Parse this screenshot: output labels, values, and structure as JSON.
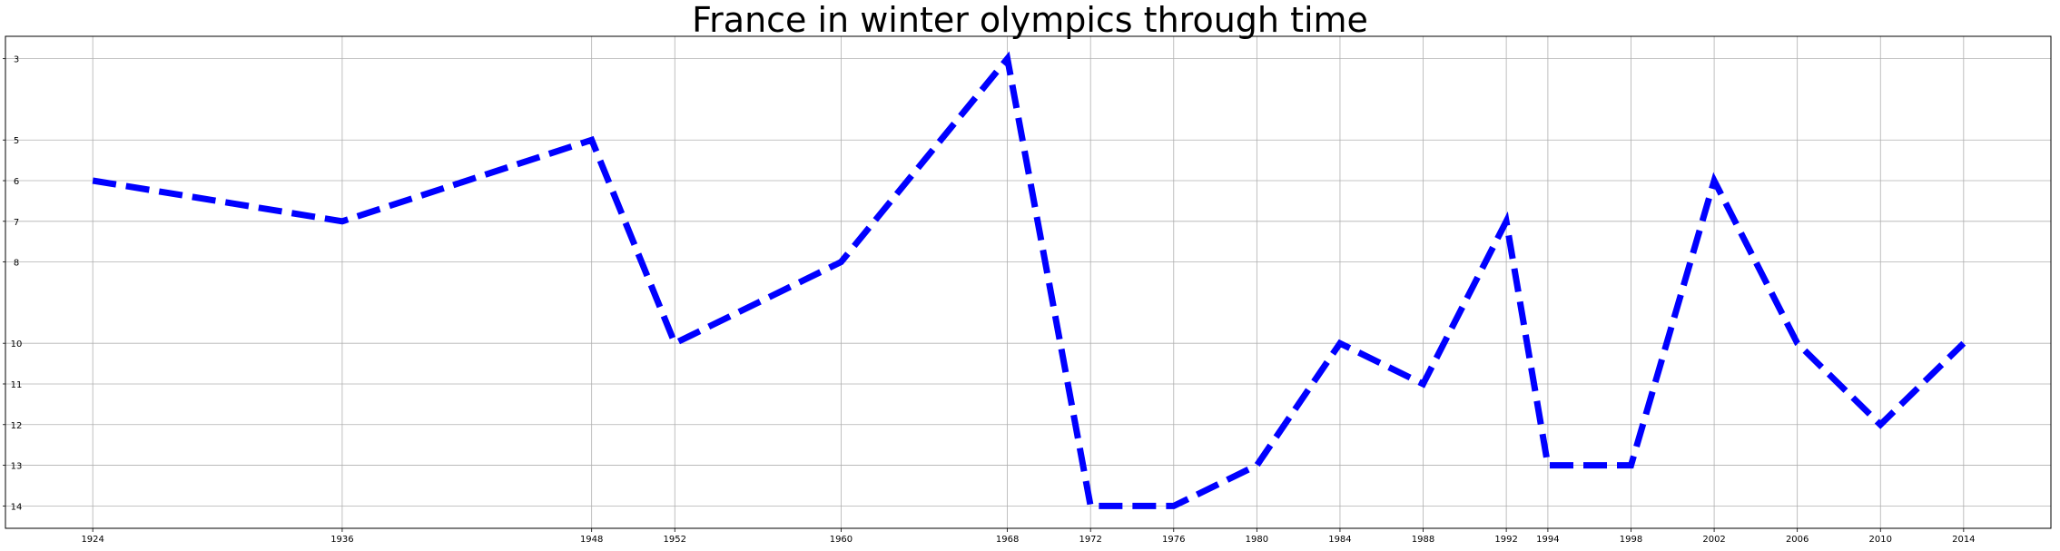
{
  "chart_data": {
    "type": "line",
    "title": "France in winter olympics through time",
    "xlabel": "",
    "ylabel": "",
    "x": [
      1924,
      1936,
      1948,
      1952,
      1960,
      1968,
      1972,
      1976,
      1980,
      1984,
      1988,
      1992,
      1994,
      1998,
      2002,
      2006,
      2010,
      2014
    ],
    "x_ticks": [
      1924,
      1936,
      1948,
      1952,
      1960,
      1968,
      1972,
      1976,
      1980,
      1984,
      1988,
      1992,
      1994,
      1998,
      2002,
      2006,
      2010,
      2014
    ],
    "y_ticks": [
      3,
      5,
      6,
      7,
      8,
      10,
      11,
      12,
      13,
      14
    ],
    "y_inverted": true,
    "xlim": [
      1919.8,
      2018.2
    ],
    "ylim": [
      2.45,
      14.55
    ],
    "grid": true,
    "legend": "none",
    "series": [
      {
        "values": [
          6,
          7,
          5,
          10,
          8,
          3,
          14,
          14,
          13,
          10,
          11,
          7,
          13,
          13,
          6,
          10,
          12,
          10
        ],
        "color": "#0000ff",
        "line_style": "dashed"
      }
    ]
  }
}
